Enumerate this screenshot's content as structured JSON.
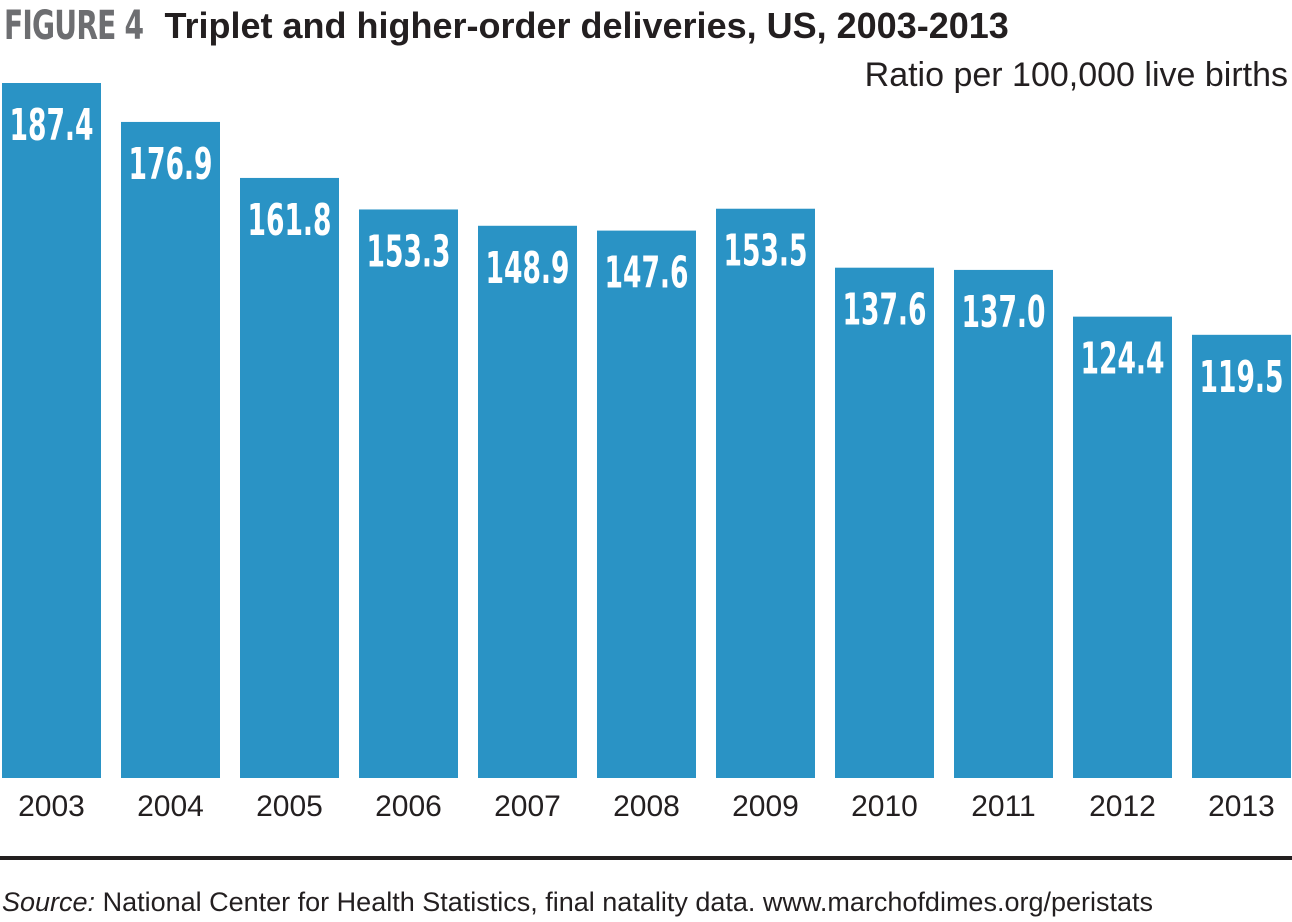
{
  "figure_label": "FIGURE 4",
  "colors": {
    "bar": "#2a93c5",
    "figure_label": "#6d6e71",
    "text": "#231f20"
  },
  "source": {
    "prefix": "Source:",
    "text": " National Center for Health Statistics, final natality data. www.marchofdimes.org/peristats"
  },
  "chart_data": {
    "type": "bar",
    "title": "Triplet and higher-order deliveries, US, 2003-2013",
    "ylabel": "Ratio per 100,000 live births",
    "xlabel": "",
    "categories": [
      "2003",
      "2004",
      "2005",
      "2006",
      "2007",
      "2008",
      "2009",
      "2010",
      "2011",
      "2012",
      "2013"
    ],
    "values": [
      187.4,
      176.9,
      161.8,
      153.3,
      148.9,
      147.6,
      153.5,
      137.6,
      137.0,
      124.4,
      119.5
    ],
    "value_labels": [
      "187.4",
      "176.9",
      "161.8",
      "153.3",
      "148.9",
      "147.6",
      "153.5",
      "137.6",
      "137.0",
      "124.4",
      "119.5"
    ],
    "ylim": [
      0,
      187.4
    ],
    "grid": false,
    "legend": "none"
  }
}
